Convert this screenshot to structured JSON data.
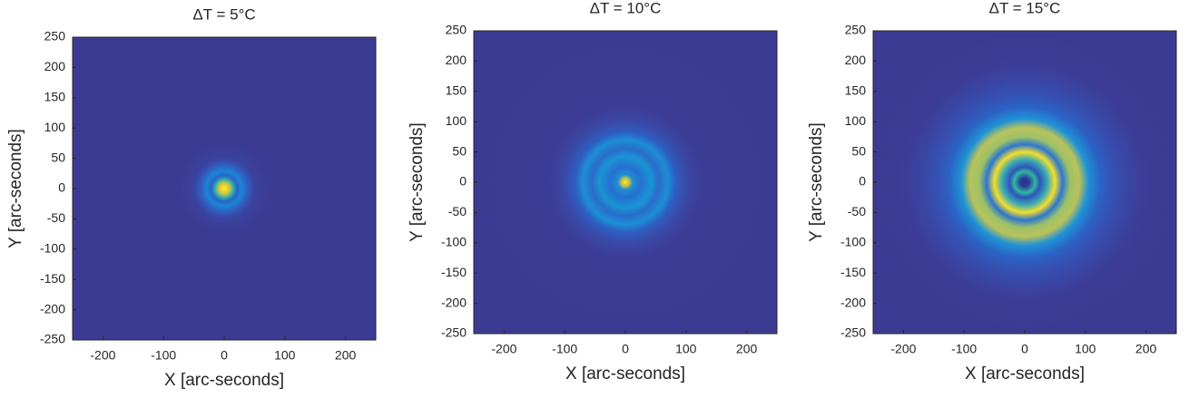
{
  "chart_data": [
    {
      "type": "heatmap",
      "title": "ΔT = 5°C",
      "xlabel": "X [arc-seconds]",
      "ylabel": "Y [arc-seconds]",
      "xlim": [
        -250,
        250
      ],
      "ylim": [
        -250,
        250
      ],
      "xticks": [
        -200,
        -100,
        0,
        100,
        200
      ],
      "yticks": [
        -250,
        -200,
        -150,
        -100,
        -50,
        0,
        50,
        100,
        150,
        200,
        250
      ]
    },
    {
      "type": "heatmap",
      "title": "ΔT = 10°C",
      "xlabel": "X [arc-seconds]",
      "ylabel": "Y [arc-seconds]",
      "xlim": [
        -250,
        250
      ],
      "ylim": [
        -250,
        250
      ],
      "xticks": [
        -200,
        -100,
        0,
        100,
        200
      ],
      "yticks": [
        -250,
        -200,
        -150,
        -100,
        -50,
        0,
        50,
        100,
        150,
        200,
        250
      ]
    },
    {
      "type": "heatmap",
      "title": "ΔT = 15°C",
      "xlabel": "X [arc-seconds]",
      "ylabel": "Y [arc-seconds]",
      "xlim": [
        -250,
        250
      ],
      "ylim": [
        -250,
        250
      ],
      "xticks": [
        -200,
        -100,
        0,
        100,
        200
      ],
      "yticks": [
        -250,
        -200,
        -150,
        -100,
        -50,
        0,
        50,
        100,
        150,
        200,
        250
      ]
    }
  ]
}
